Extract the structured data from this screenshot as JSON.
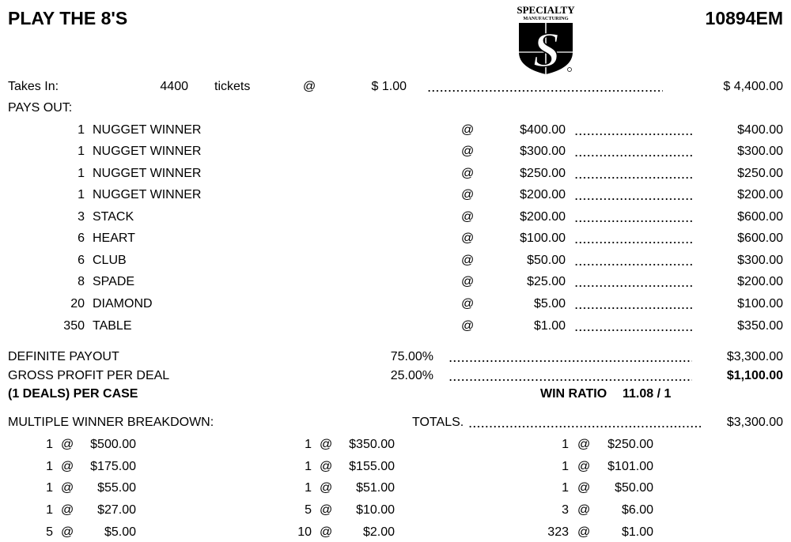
{
  "header": {
    "title": "PLAY THE 8'S",
    "form_number": "10894EM",
    "logo": "SPECIALTY MANUFACTURING"
  },
  "takes_in": {
    "label": "Takes In:",
    "tickets": "4400",
    "tickets_label": "tickets",
    "at": "@",
    "price": "$ 1.00",
    "total": "$ 4,400.00"
  },
  "pays_out": {
    "label": "PAYS OUT:",
    "rows": [
      {
        "qty": "1",
        "name": "NUGGET WINNER",
        "at": "@",
        "price": "$400.00",
        "total": "$400.00"
      },
      {
        "qty": "1",
        "name": "NUGGET WINNER",
        "at": "@",
        "price": "$300.00",
        "total": "$300.00"
      },
      {
        "qty": "1",
        "name": "NUGGET WINNER",
        "at": "@",
        "price": "$250.00",
        "total": "$250.00"
      },
      {
        "qty": "1",
        "name": "NUGGET WINNER",
        "at": "@",
        "price": "$200.00",
        "total": "$200.00"
      },
      {
        "qty": "3",
        "name": "STACK",
        "at": "@",
        "price": "$200.00",
        "total": "$600.00"
      },
      {
        "qty": "6",
        "name": "HEART",
        "at": "@",
        "price": "$100.00",
        "total": "$600.00"
      },
      {
        "qty": "6",
        "name": "CLUB",
        "at": "@",
        "price": "$50.00",
        "total": "$300.00"
      },
      {
        "qty": "8",
        "name": "SPADE",
        "at": "@",
        "price": "$25.00",
        "total": "$200.00"
      },
      {
        "qty": "20",
        "name": "DIAMOND",
        "at": "@",
        "price": "$5.00",
        "total": "$100.00"
      },
      {
        "qty": "350",
        "name": "TABLE",
        "at": "@",
        "price": "$1.00",
        "total": "$350.00"
      }
    ]
  },
  "summary": {
    "definite_label": "DEFINITE PAYOUT",
    "definite_pct": "75.00%",
    "definite_total": "$3,300.00",
    "gross_label": "GROSS PROFIT PER DEAL",
    "gross_pct": "25.00%",
    "gross_total": "$1,100.00",
    "deals_label": "(1 DEALS) PER CASE",
    "win_ratio_label": "WIN RATIO",
    "win_ratio": "11.08 / 1"
  },
  "breakdown": {
    "label": "MULTIPLE WINNER BREAKDOWN:",
    "totals_label": "TOTALS.",
    "totals_value": "$3,300.00",
    "columns": [
      [
        {
          "qty": "1",
          "amt": "$500.00"
        },
        {
          "qty": "1",
          "amt": "$175.00"
        },
        {
          "qty": "1",
          "amt": "$55.00"
        },
        {
          "qty": "1",
          "amt": "$27.00"
        },
        {
          "qty": "5",
          "amt": "$5.00"
        }
      ],
      [
        {
          "qty": "1",
          "amt": "$350.00"
        },
        {
          "qty": "1",
          "amt": "$155.00"
        },
        {
          "qty": "1",
          "amt": "$51.00"
        },
        {
          "qty": "5",
          "amt": "$10.00"
        },
        {
          "qty": "10",
          "amt": "$2.00"
        }
      ],
      [
        {
          "qty": "1",
          "amt": "$250.00"
        },
        {
          "qty": "1",
          "amt": "$101.00"
        },
        {
          "qty": "1",
          "amt": "$50.00"
        },
        {
          "qty": "3",
          "amt": "$6.00"
        },
        {
          "qty": "323",
          "amt": "$1.00"
        }
      ]
    ],
    "at": "@"
  }
}
